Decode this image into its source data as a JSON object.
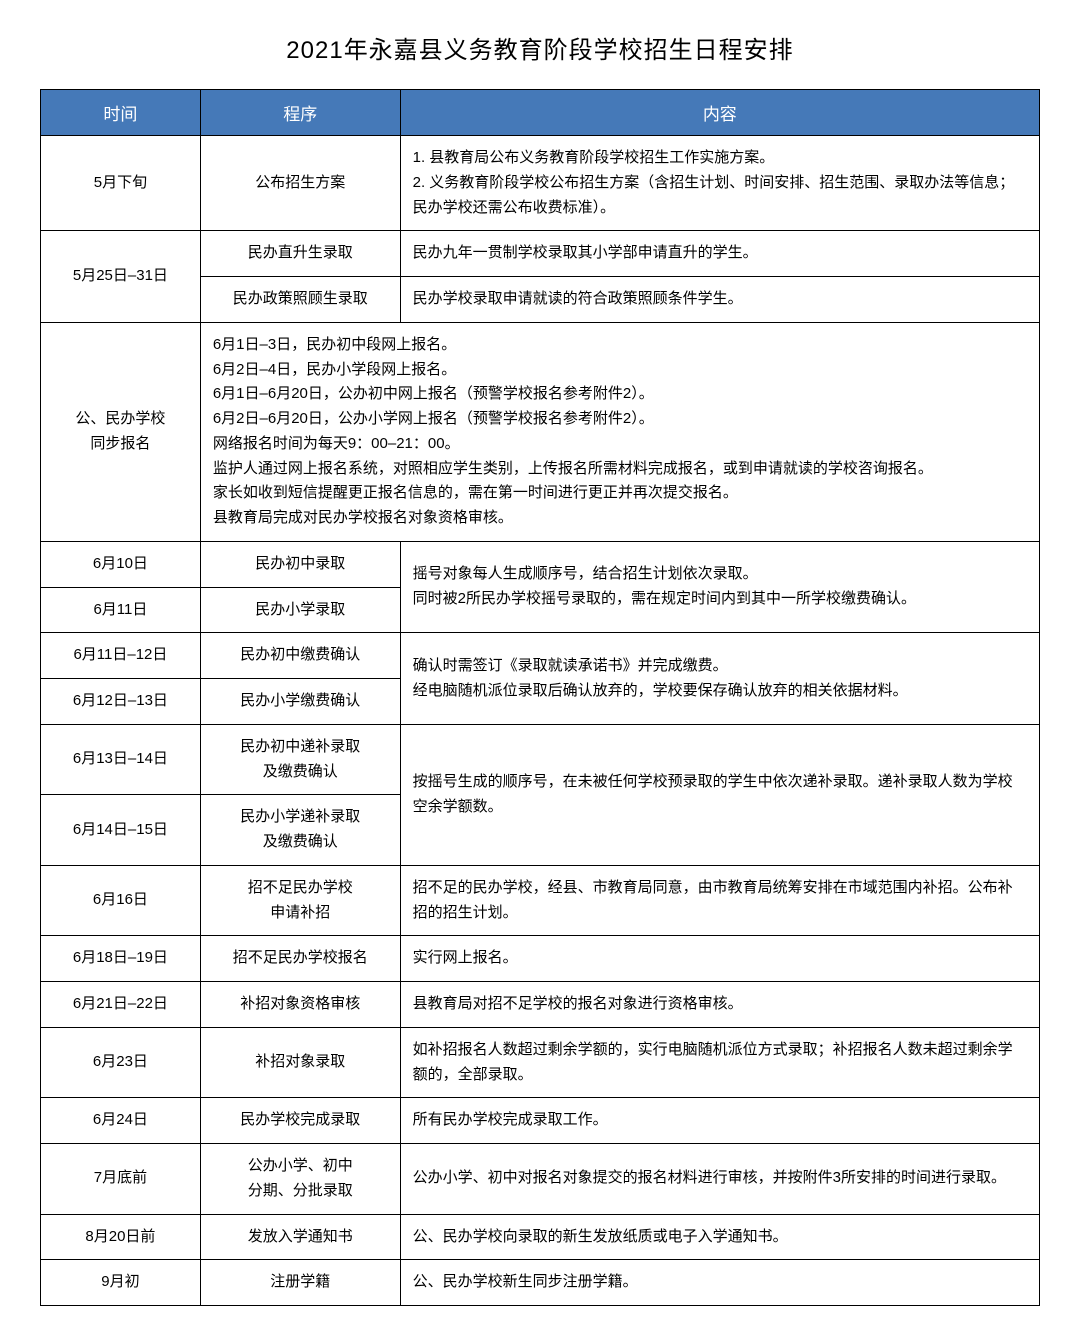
{
  "title": "2021年永嘉县义务教育阶段学校招生日程安排",
  "header": {
    "c1": "时间",
    "c2": "程序",
    "c3": "内容"
  },
  "r1": {
    "t": "5月下旬",
    "p": "公布招生方案",
    "c": "1. 县教育局公布义务教育阶段学校招生工作实施方案。\n2. 义务教育阶段学校公布招生方案（含招生计划、时间安排、招生范围、录取办法等信息；民办学校还需公布收费标准）。"
  },
  "r2a": {
    "t": "5月25日–31日",
    "p": "民办直升生录取",
    "c": "民办九年一贯制学校录取其小学部申请直升的学生。"
  },
  "r2b": {
    "p": "民办政策照顾生录取",
    "c": "民办学校录取申请就读的符合政策照顾条件学生。"
  },
  "r3": {
    "t": "公、民办学校\n同步报名",
    "c": "6月1日–3日，民办初中段网上报名。\n6月2日–4日，民办小学段网上报名。\n6月1日–6月20日，公办初中网上报名（预警学校报名参考附件2）。\n6月2日–6月20日，公办小学网上报名（预警学校报名参考附件2）。\n网络报名时间为每天9：00–21：00。\n监护人通过网上报名系统，对照相应学生类别，上传报名所需材料完成报名，或到申请就读的学校咨询报名。\n家长如收到短信提醒更正报名信息的，需在第一时间进行更正并再次提交报名。\n县教育局完成对民办学校报名对象资格审核。"
  },
  "r4": {
    "t": "6月10日",
    "p": "民办初中录取"
  },
  "r5": {
    "t": "6月11日",
    "p": "民办小学录取",
    "c": "摇号对象每人生成顺序号，结合招生计划依次录取。\n同时被2所民办学校摇号录取的，需在规定时间内到其中一所学校缴费确认。"
  },
  "r6": {
    "t": "6月11日–12日",
    "p": "民办初中缴费确认"
  },
  "r7": {
    "t": "6月12日–13日",
    "p": "民办小学缴费确认",
    "c": "确认时需签订《录取就读承诺书》并完成缴费。\n经电脑随机派位录取后确认放弃的，学校要保存确认放弃的相关依据材料。"
  },
  "r8": {
    "t": "6月13日–14日",
    "p": "民办初中递补录取\n及缴费确认"
  },
  "r9": {
    "t": "6月14日–15日",
    "p": "民办小学递补录取\n及缴费确认",
    "c": "按摇号生成的顺序号，在未被任何学校预录取的学生中依次递补录取。递补录取人数为学校空余学额数。"
  },
  "r10": {
    "t": "6月16日",
    "p": "招不足民办学校\n申请补招",
    "c": "招不足的民办学校，经县、市教育局同意，由市教育局统筹安排在市域范围内补招。公布补招的招生计划。"
  },
  "r11": {
    "t": "6月18日–19日",
    "p": "招不足民办学校报名",
    "c": "实行网上报名。"
  },
  "r12": {
    "t": "6月21日–22日",
    "p": "补招对象资格审核",
    "c": "县教育局对招不足学校的报名对象进行资格审核。"
  },
  "r13": {
    "t": "6月23日",
    "p": "补招对象录取",
    "c": "如补招报名人数超过剩余学额的，实行电脑随机派位方式录取；补招报名人数未超过剩余学额的，全部录取。"
  },
  "r14": {
    "t": "6月24日",
    "p": "民办学校完成录取",
    "c": "所有民办学校完成录取工作。"
  },
  "r15": {
    "t": "7月底前",
    "p": "公办小学、初中\n分期、分批录取",
    "c": "公办小学、初中对报名对象提交的报名材料进行审核，并按附件3所安排的时间进行录取。"
  },
  "r16": {
    "t": "8月20日前",
    "p": "发放入学通知书",
    "c": "公、民办学校向录取的新生发放纸质或电子入学通知书。"
  },
  "r17": {
    "t": "9月初",
    "p": "注册学籍",
    "c": "公、民办学校新生同步注册学籍。"
  },
  "styling": {
    "header_bg": "#4579b8",
    "header_fg": "#ffffff",
    "border_color": "#000000",
    "title_fontsize": 24,
    "body_fontsize": 15,
    "col_widths": [
      "16%",
      "20%",
      "64%"
    ]
  }
}
